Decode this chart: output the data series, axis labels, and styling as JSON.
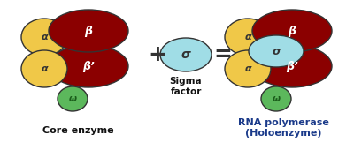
{
  "bg_color": "#ffffff",
  "colors": {
    "alpha": "#f0c848",
    "beta": "#8b0000",
    "omega": "#5cb85c",
    "sigma": "#a0dde6",
    "outline": "#333333"
  },
  "labels": {
    "alpha": "α",
    "beta": "β",
    "beta_prime": "β’",
    "omega": "ω",
    "sigma": "σ",
    "core": "Core enzyme",
    "sigma_factor": "Sigma\nfactor",
    "rna_pol": "RNA polymerase\n(Holoenzyme)"
  },
  "label_colors": {
    "core": "#111111",
    "sigma_factor": "#111111",
    "rna_pol": "#1a3a8a"
  }
}
